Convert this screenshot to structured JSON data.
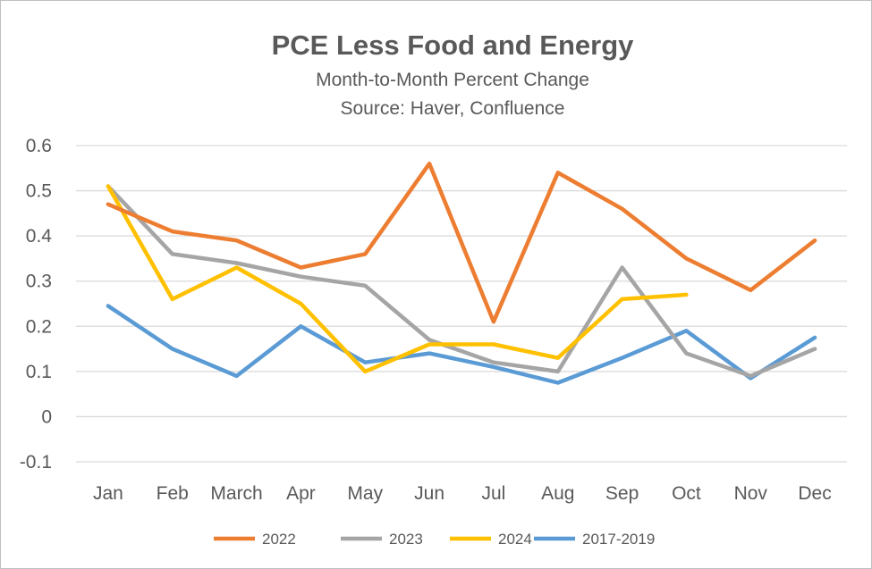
{
  "chart_data": {
    "type": "line",
    "title": "PCE Less Food and Energy",
    "subtitle": "Month-to-Month Percent Change",
    "source": "Source: Haver, Confluence",
    "xlabel": "",
    "ylabel": "",
    "categories": [
      "Jan",
      "Feb",
      "March",
      "Apr",
      "May",
      "Jun",
      "Jul",
      "Aug",
      "Sep",
      "Oct",
      "Nov",
      "Dec"
    ],
    "ylim": [
      -0.1,
      0.6
    ],
    "yticks": [
      "-0.1",
      "0",
      "0.1",
      "0.2",
      "0.3",
      "0.4",
      "0.5",
      "0.6"
    ],
    "grid": true,
    "legend_position": "bottom",
    "series": [
      {
        "name": "2022",
        "color": "#ed7d31",
        "values": [
          0.47,
          0.41,
          0.39,
          0.33,
          0.36,
          0.56,
          0.21,
          0.54,
          0.46,
          0.35,
          0.28,
          0.39
        ]
      },
      {
        "name": "2023",
        "color": "#a5a5a5",
        "values": [
          0.51,
          0.36,
          0.34,
          0.31,
          0.29,
          0.17,
          0.12,
          0.1,
          0.33,
          0.14,
          0.09,
          0.15
        ]
      },
      {
        "name": "2024",
        "color": "#ffc000",
        "values": [
          0.51,
          0.26,
          0.33,
          0.25,
          0.1,
          0.16,
          0.16,
          0.13,
          0.26,
          0.27,
          null,
          null
        ]
      },
      {
        "name": "2017-2019",
        "color": "#5b9bd5",
        "values": [
          0.245,
          0.15,
          0.09,
          0.2,
          0.12,
          0.14,
          0.11,
          0.075,
          0.13,
          0.19,
          0.085,
          0.175
        ]
      }
    ]
  }
}
